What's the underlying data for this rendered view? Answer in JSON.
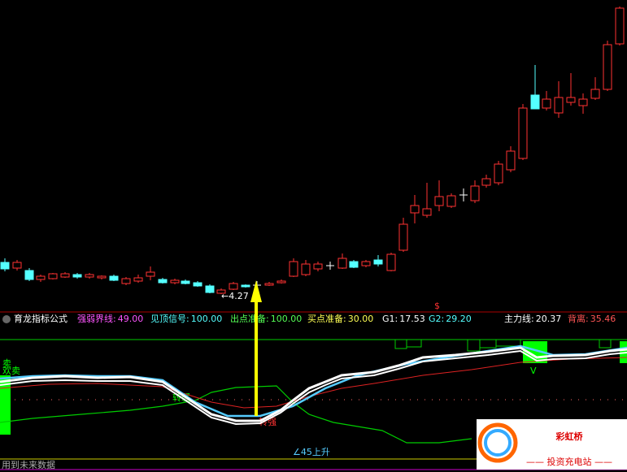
{
  "price_panel": {
    "low_label": "←4.27",
    "signal": "$"
  },
  "indicator": {
    "name": "育龙指标公式",
    "params": [
      {
        "label": "强弱界线:",
        "value": "49.00",
        "color": "#ff55ff"
      },
      {
        "label": "见顶信号:",
        "value": "100.00",
        "color": "#55ffff"
      },
      {
        "label": "出点准备:",
        "value": "100.00",
        "color": "#55ff55"
      },
      {
        "label": "买点准备:",
        "value": "30.00",
        "color": "#ffff55"
      },
      {
        "label": "G1:",
        "value": "17.53",
        "color": "#ffffff"
      },
      {
        "label": "G2:",
        "value": "29.20",
        "color": "#55ffff"
      },
      {
        "label": "主力线:",
        "value": "20.37",
        "color": "#ffffff"
      },
      {
        "label": "背离:",
        "value": "35.46",
        "color": "#ff5555"
      }
    ],
    "annotations": {
      "sell": "卖",
      "sell2": "欢卖",
      "weak": "转弱",
      "strong": "转强",
      "rise": "∠45上升",
      "v": "V",
      "future": "用到未来数据"
    }
  },
  "watermark": {
    "brand": "彩虹桥",
    "slogan": "—— 投资充电站 ——"
  }
}
